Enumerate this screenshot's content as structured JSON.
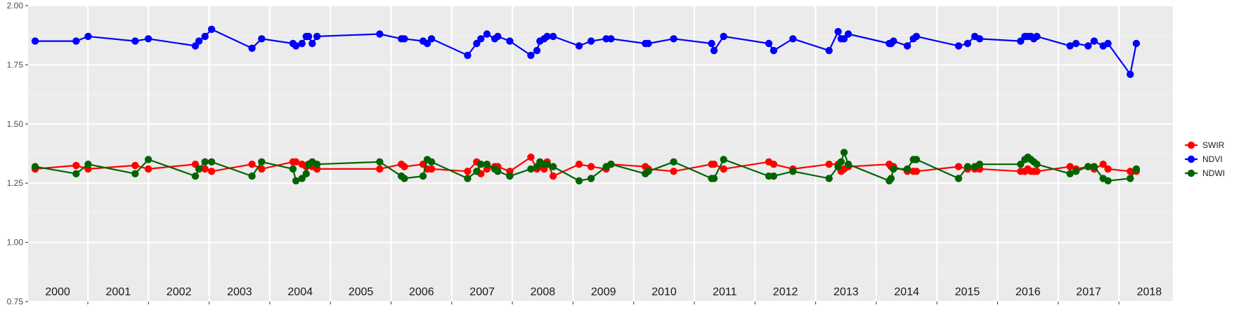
{
  "chart_data": {
    "type": "line",
    "title": "",
    "xlabel": "",
    "ylabel": "",
    "ylim": [
      0.75,
      2.0
    ],
    "xlim": [
      2000.0,
      2018.95
    ],
    "y_ticks": [
      "0.75",
      "1.00",
      "1.25",
      "1.50",
      "1.75",
      "2.00"
    ],
    "y_tick_values": [
      0.75,
      1.0,
      1.25,
      1.5,
      1.75,
      2.0
    ],
    "years": [
      "2000",
      "2001",
      "2002",
      "2003",
      "2004",
      "2005",
      "2006",
      "2007",
      "2008",
      "2009",
      "2010",
      "2011",
      "2012",
      "2013",
      "2014",
      "2015",
      "2016",
      "2017",
      "2018"
    ],
    "grid": true,
    "legend": "right",
    "series": [
      {
        "name": "SWIR",
        "color": "#ff0000",
        "x": [
          2000.12,
          2000.8,
          2001.0,
          2001.78,
          2002.0,
          2002.78,
          2002.84,
          2002.94,
          2003.05,
          2003.72,
          2003.88,
          2004.4,
          2004.45,
          2004.55,
          2004.62,
          2004.66,
          2004.72,
          2004.8,
          2005.84,
          2006.2,
          2006.25,
          2006.56,
          2006.63,
          2006.7,
          2007.3,
          2007.45,
          2007.52,
          2007.62,
          2007.75,
          2007.8,
          2008.0,
          2008.35,
          2008.45,
          2008.5,
          2008.57,
          2008.62,
          2008.72,
          2009.15,
          2009.35,
          2009.6,
          2009.68,
          2010.25,
          2010.3,
          2010.72,
          2011.35,
          2011.39,
          2011.55,
          2012.3,
          2012.38,
          2012.7,
          2013.3,
          2013.45,
          2013.5,
          2013.55,
          2013.62,
          2014.3,
          2014.33,
          2014.37,
          2014.6,
          2014.7,
          2014.75,
          2015.45,
          2015.6,
          2015.72,
          2015.8,
          2016.48,
          2016.55,
          2016.6,
          2016.65,
          2016.7,
          2016.75,
          2017.3,
          2017.4,
          2017.6,
          2017.7,
          2017.85,
          2017.93,
          2018.3,
          2018.4
        ],
        "y": [
          1.31,
          1.325,
          1.31,
          1.325,
          1.31,
          1.33,
          1.31,
          1.31,
          1.3,
          1.33,
          1.31,
          1.34,
          1.34,
          1.33,
          1.32,
          1.33,
          1.32,
          1.31,
          1.31,
          1.33,
          1.32,
          1.33,
          1.31,
          1.31,
          1.3,
          1.34,
          1.29,
          1.31,
          1.32,
          1.32,
          1.3,
          1.36,
          1.31,
          1.32,
          1.31,
          1.34,
          1.28,
          1.33,
          1.32,
          1.31,
          1.33,
          1.32,
          1.31,
          1.3,
          1.33,
          1.33,
          1.31,
          1.34,
          1.33,
          1.31,
          1.33,
          1.33,
          1.3,
          1.31,
          1.32,
          1.33,
          1.32,
          1.32,
          1.3,
          1.3,
          1.3,
          1.32,
          1.31,
          1.31,
          1.31,
          1.3,
          1.3,
          1.31,
          1.3,
          1.3,
          1.3,
          1.32,
          1.31,
          1.32,
          1.31,
          1.33,
          1.31,
          1.3,
          1.3
        ]
      },
      {
        "name": "NDVI",
        "color": "#0000ff",
        "x": [
          2000.12,
          2000.8,
          2001.0,
          2001.78,
          2002.0,
          2002.78,
          2002.84,
          2002.94,
          2003.05,
          2003.72,
          2003.88,
          2004.4,
          2004.45,
          2004.55,
          2004.62,
          2004.66,
          2004.72,
          2004.8,
          2005.84,
          2006.2,
          2006.25,
          2006.56,
          2006.63,
          2006.7,
          2007.3,
          2007.45,
          2007.52,
          2007.62,
          2007.75,
          2007.8,
          2008.0,
          2008.35,
          2008.45,
          2008.5,
          2008.57,
          2008.62,
          2008.72,
          2009.15,
          2009.35,
          2009.6,
          2009.68,
          2010.25,
          2010.3,
          2010.72,
          2011.35,
          2011.39,
          2011.55,
          2012.3,
          2012.38,
          2012.7,
          2013.3,
          2013.45,
          2013.5,
          2013.55,
          2013.62,
          2014.3,
          2014.33,
          2014.37,
          2014.6,
          2014.7,
          2014.75,
          2015.45,
          2015.6,
          2015.72,
          2015.8,
          2016.48,
          2016.55,
          2016.6,
          2016.65,
          2016.7,
          2016.75,
          2017.3,
          2017.4,
          2017.6,
          2017.7,
          2017.85,
          2017.93,
          2018.3,
          2018.4
        ],
        "y": [
          1.85,
          1.85,
          1.87,
          1.85,
          1.86,
          1.83,
          1.85,
          1.87,
          1.9,
          1.82,
          1.86,
          1.84,
          1.83,
          1.84,
          1.87,
          1.87,
          1.84,
          1.87,
          1.88,
          1.86,
          1.86,
          1.85,
          1.84,
          1.86,
          1.79,
          1.84,
          1.86,
          1.88,
          1.86,
          1.87,
          1.85,
          1.79,
          1.81,
          1.85,
          1.86,
          1.87,
          1.87,
          1.83,
          1.85,
          1.86,
          1.86,
          1.84,
          1.84,
          1.86,
          1.84,
          1.81,
          1.87,
          1.84,
          1.81,
          1.86,
          1.81,
          1.89,
          1.86,
          1.86,
          1.88,
          1.84,
          1.84,
          1.85,
          1.83,
          1.86,
          1.87,
          1.83,
          1.84,
          1.87,
          1.86,
          1.85,
          1.87,
          1.87,
          1.87,
          1.86,
          1.87,
          1.83,
          1.84,
          1.83,
          1.85,
          1.83,
          1.84,
          1.71,
          1.84
        ]
      },
      {
        "name": "NDWI",
        "color": "#006400",
        "x": [
          2000.12,
          2000.8,
          2001.0,
          2001.78,
          2002.0,
          2002.78,
          2002.84,
          2002.94,
          2003.05,
          2003.72,
          2003.88,
          2004.4,
          2004.45,
          2004.55,
          2004.62,
          2004.66,
          2004.72,
          2004.8,
          2005.84,
          2006.2,
          2006.25,
          2006.56,
          2006.63,
          2006.7,
          2007.3,
          2007.45,
          2007.52,
          2007.62,
          2007.75,
          2007.8,
          2008.0,
          2008.35,
          2008.45,
          2008.5,
          2008.57,
          2008.62,
          2008.72,
          2009.15,
          2009.35,
          2009.6,
          2009.68,
          2010.25,
          2010.3,
          2010.72,
          2011.35,
          2011.39,
          2011.55,
          2012.3,
          2012.38,
          2012.7,
          2013.3,
          2013.45,
          2013.5,
          2013.55,
          2013.62,
          2014.3,
          2014.33,
          2014.37,
          2014.6,
          2014.7,
          2014.75,
          2015.45,
          2015.6,
          2015.72,
          2015.8,
          2016.48,
          2016.55,
          2016.6,
          2016.65,
          2016.7,
          2016.75,
          2017.3,
          2017.4,
          2017.6,
          2017.7,
          2017.85,
          2017.93,
          2018.3,
          2018.4
        ],
        "y": [
          1.32,
          1.29,
          1.33,
          1.29,
          1.35,
          1.28,
          1.31,
          1.34,
          1.34,
          1.28,
          1.34,
          1.31,
          1.26,
          1.27,
          1.29,
          1.33,
          1.34,
          1.33,
          1.34,
          1.28,
          1.27,
          1.28,
          1.35,
          1.34,
          1.27,
          1.3,
          1.33,
          1.33,
          1.31,
          1.3,
          1.28,
          1.31,
          1.32,
          1.34,
          1.33,
          1.33,
          1.32,
          1.26,
          1.27,
          1.32,
          1.33,
          1.29,
          1.3,
          1.34,
          1.27,
          1.27,
          1.35,
          1.28,
          1.28,
          1.3,
          1.27,
          1.32,
          1.34,
          1.38,
          1.33,
          1.26,
          1.27,
          1.31,
          1.31,
          1.35,
          1.35,
          1.27,
          1.32,
          1.32,
          1.33,
          1.33,
          1.35,
          1.36,
          1.35,
          1.34,
          1.33,
          1.29,
          1.3,
          1.32,
          1.32,
          1.27,
          1.26,
          1.27,
          1.31
        ]
      }
    ]
  }
}
